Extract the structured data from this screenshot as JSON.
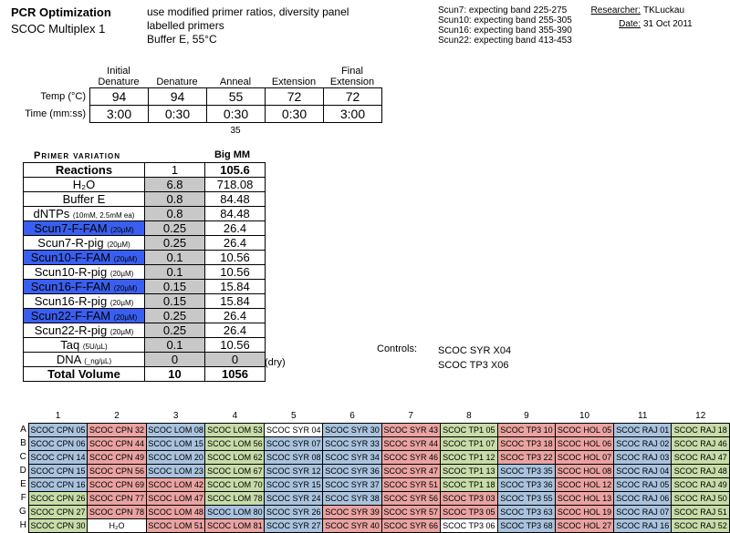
{
  "header": {
    "title": "PCR Optimization",
    "subtitle": "SCOC Multiplex 1",
    "desc": [
      "use modified primer ratios, diversity panel",
      "labelled primers",
      "Buffer E, 55°C"
    ],
    "bands": [
      "Scun7: expecting band 225-275",
      "Scun10: expecting band 255-305",
      "Scun16: expecting band 355-390",
      "Scun22: expecting band 413-453"
    ],
    "researcher_label": "Researcher:",
    "researcher": "TKLuckau",
    "date_label": "Date:",
    "date": "31 Oct 2011"
  },
  "cycling": {
    "headers": [
      "Initial Denature",
      "Denature",
      "Anneal",
      "Extension",
      "Final Extension"
    ],
    "temp_label": "Temp (°C)",
    "time_label": "Time (mm:ss)",
    "temps": [
      "94",
      "94",
      "55",
      "72",
      "72"
    ],
    "times": [
      "3:00",
      "0:30",
      "0:30",
      "0:30",
      "3:00"
    ],
    "cycles": "35"
  },
  "primer": {
    "heading": "Primer variation",
    "mm_heading": "Big MM",
    "rows": [
      {
        "name": "Reactions",
        "unit": "",
        "val": "1",
        "mm": "105.6",
        "style": "bold"
      },
      {
        "name": "H₂O",
        "unit": "",
        "val": "6.8",
        "mm": "718.08",
        "style": "g"
      },
      {
        "name": "Buffer E",
        "unit": "",
        "val": "0.8",
        "mm": "84.48",
        "style": "g"
      },
      {
        "name": "dNTPs",
        "unit": "(10mM, 2.5mM ea)",
        "val": "0.8",
        "mm": "84.48",
        "style": "g"
      },
      {
        "name": "Scun7-F-FAM",
        "unit": "(20µM)",
        "val": "0.25",
        "mm": "26.4",
        "style": "b"
      },
      {
        "name": "Scun7-R-pig",
        "unit": "(20µM)",
        "val": "0.25",
        "mm": "26.4",
        "style": "g"
      },
      {
        "name": "Scun10-F-FAM",
        "unit": "(20µM)",
        "val": "0.1",
        "mm": "10.56",
        "style": "b"
      },
      {
        "name": "Scun10-R-pig",
        "unit": "(20µM)",
        "val": "0.1",
        "mm": "10.56",
        "style": "g"
      },
      {
        "name": "Scun16-F-FAM",
        "unit": "(20µM)",
        "val": "0.15",
        "mm": "15.84",
        "style": "b"
      },
      {
        "name": "Scun16-R-pig",
        "unit": "(20µM)",
        "val": "0.15",
        "mm": "15.84",
        "style": "g"
      },
      {
        "name": "Scun22-F-FAM",
        "unit": "(20µM)",
        "val": "0.25",
        "mm": "26.4",
        "style": "b"
      },
      {
        "name": "Scun22-R-pig",
        "unit": "(20µM)",
        "val": "0.25",
        "mm": "26.4",
        "style": "g"
      },
      {
        "name": "Taq",
        "unit": "(5U/µL)",
        "val": "0.1",
        "mm": "10.56",
        "style": "g"
      },
      {
        "name": "DNA",
        "unit": "(_ng/µL)",
        "val": "0",
        "mm": "0",
        "style": "dna"
      },
      {
        "name": "Total Volume",
        "unit": "",
        "val": "10",
        "mm": "1056",
        "style": "bold"
      }
    ],
    "dry_note": "(dry)"
  },
  "controls": {
    "label": "Controls:",
    "items": [
      "SCOC SYR X04",
      "SCOC TP3 X06"
    ]
  },
  "plate": {
    "columns": [
      "1",
      "2",
      "3",
      "4",
      "5",
      "6",
      "7",
      "8",
      "9",
      "10",
      "11",
      "12"
    ],
    "rows": [
      "A",
      "B",
      "C",
      "D",
      "E",
      "F",
      "G",
      "H"
    ],
    "colors": {
      "blue": "#a9c3de",
      "red": "#e9a3a1",
      "green": "#c7dca8",
      "white": "#ffffff"
    },
    "cells": [
      [
        [
          "SCOC CPN 05",
          "blue"
        ],
        [
          "SCOC CPN 32",
          "red"
        ],
        [
          "SCOC LOM 08",
          "blue"
        ],
        [
          "SCOC LOM 53",
          "green"
        ],
        [
          "SCOC SYR 04",
          "white"
        ],
        [
          "SCOC SYR 30",
          "blue"
        ],
        [
          "SCOC SYR 43",
          "red"
        ],
        [
          "SCOC TP1 05",
          "green"
        ],
        [
          "SCOC TP3 10",
          "red"
        ],
        [
          "SCOC HOL 05",
          "red"
        ],
        [
          "SCOC RAJ 01",
          "blue"
        ],
        [
          "SCOC RAJ 18",
          "green"
        ]
      ],
      [
        [
          "SCOC CPN 06",
          "blue"
        ],
        [
          "SCOC CPN 44",
          "red"
        ],
        [
          "SCOC LOM 15",
          "blue"
        ],
        [
          "SCOC LOM 56",
          "green"
        ],
        [
          "SCOC SYR 07",
          "blue"
        ],
        [
          "SCOC SYR 33",
          "blue"
        ],
        [
          "SCOC SYR 44",
          "red"
        ],
        [
          "SCOC TP1 07",
          "green"
        ],
        [
          "SCOC TP3 18",
          "red"
        ],
        [
          "SCOC HOL 06",
          "red"
        ],
        [
          "SCOC RAJ 02",
          "blue"
        ],
        [
          "SCOC RAJ 46",
          "green"
        ]
      ],
      [
        [
          "SCOC CPN 14",
          "blue"
        ],
        [
          "SCOC CPN 49",
          "red"
        ],
        [
          "SCOC LOM 20",
          "blue"
        ],
        [
          "SCOC LOM 62",
          "green"
        ],
        [
          "SCOC SYR 08",
          "blue"
        ],
        [
          "SCOC SYR 34",
          "blue"
        ],
        [
          "SCOC SYR 46",
          "red"
        ],
        [
          "SCOC TP1 12",
          "green"
        ],
        [
          "SCOC TP3 22",
          "red"
        ],
        [
          "SCOC HOL 07",
          "red"
        ],
        [
          "SCOC RAJ 03",
          "blue"
        ],
        [
          "SCOC RAJ 47",
          "green"
        ]
      ],
      [
        [
          "SCOC CPN 15",
          "blue"
        ],
        [
          "SCOC CPN 56",
          "red"
        ],
        [
          "SCOC LOM 23",
          "blue"
        ],
        [
          "SCOC LOM 67",
          "green"
        ],
        [
          "SCOC SYR 12",
          "blue"
        ],
        [
          "SCOC SYR 36",
          "blue"
        ],
        [
          "SCOC SYR 47",
          "red"
        ],
        [
          "SCOC TP1 13",
          "green"
        ],
        [
          "SCOC TP3 35",
          "blue"
        ],
        [
          "SCOC HOL 08",
          "red"
        ],
        [
          "SCOC RAJ 04",
          "blue"
        ],
        [
          "SCOC RAJ 48",
          "green"
        ]
      ],
      [
        [
          "SCOC CPN 16",
          "blue"
        ],
        [
          "SCOC CPN 69",
          "red"
        ],
        [
          "SCOC LOM 42",
          "red"
        ],
        [
          "SCOC LOM 70",
          "green"
        ],
        [
          "SCOC SYR 15",
          "blue"
        ],
        [
          "SCOC SYR 37",
          "blue"
        ],
        [
          "SCOC SYR 51",
          "red"
        ],
        [
          "SCOC TP1 18",
          "green"
        ],
        [
          "SCOC TP3 36",
          "blue"
        ],
        [
          "SCOC HOL 12",
          "red"
        ],
        [
          "SCOC RAJ 05",
          "blue"
        ],
        [
          "SCOC RAJ 49",
          "green"
        ]
      ],
      [
        [
          "SCOC CPN 26",
          "green"
        ],
        [
          "SCOC CPN 77",
          "red"
        ],
        [
          "SCOC LOM 47",
          "red"
        ],
        [
          "SCOC LOM 78",
          "green"
        ],
        [
          "SCOC SYR 24",
          "blue"
        ],
        [
          "SCOC SYR 38",
          "blue"
        ],
        [
          "SCOC SYR 56",
          "red"
        ],
        [
          "SCOC TP3 03",
          "red"
        ],
        [
          "SCOC TP3 55",
          "blue"
        ],
        [
          "SCOC HOL 13",
          "red"
        ],
        [
          "SCOC RAJ 06",
          "blue"
        ],
        [
          "SCOC RAJ 50",
          "green"
        ]
      ],
      [
        [
          "SCOC CPN 27",
          "green"
        ],
        [
          "SCOC CPN 78",
          "red"
        ],
        [
          "SCOC LOM 48",
          "red"
        ],
        [
          "SCOC LOM 80",
          "blue"
        ],
        [
          "SCOC SYR 26",
          "blue"
        ],
        [
          "SCOC SYR 39",
          "red"
        ],
        [
          "SCOC SYR 57",
          "red"
        ],
        [
          "SCOC TP3 05",
          "red"
        ],
        [
          "SCOC TP3 63",
          "blue"
        ],
        [
          "SCOC HOL 19",
          "red"
        ],
        [
          "SCOC RAJ 07",
          "blue"
        ],
        [
          "SCOC RAJ 51",
          "green"
        ]
      ],
      [
        [
          "SCOC CPN 30",
          "green"
        ],
        [
          "H₂O",
          "white"
        ],
        [
          "SCOC LOM 51",
          "red"
        ],
        [
          "SCOC LOM 81",
          "red"
        ],
        [
          "SCOC SYR 27",
          "blue"
        ],
        [
          "SCOC SYR 40",
          "red"
        ],
        [
          "SCOC SYR 66",
          "red"
        ],
        [
          "SCOC TP3 06",
          "white"
        ],
        [
          "SCOC TP3 68",
          "blue"
        ],
        [
          "SCOC HOL 27",
          "red"
        ],
        [
          "SCOC RAJ 16",
          "blue"
        ],
        [
          "SCOC RAJ 52",
          "green"
        ]
      ]
    ]
  }
}
